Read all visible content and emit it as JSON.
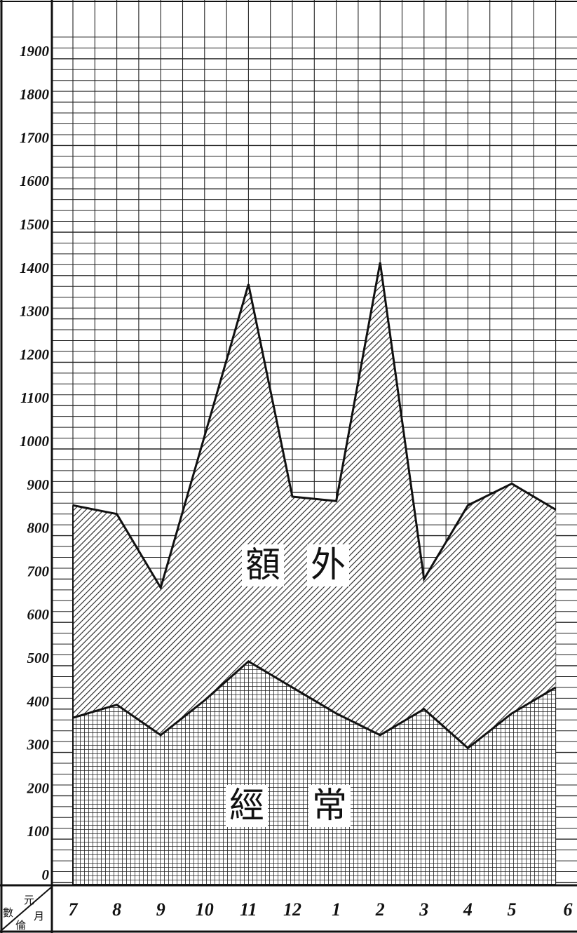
{
  "chart_data": {
    "type": "area",
    "stacked": true,
    "categories": [
      "7",
      "8",
      "9",
      "10",
      "11",
      "12",
      "1",
      "2",
      "3",
      "4",
      "5",
      "6"
    ],
    "series": [
      {
        "name": "經常",
        "values": [
          380,
          410,
          340,
          420,
          510,
          450,
          390,
          340,
          400,
          310,
          390,
          450
        ],
        "fill": "crosshatch"
      },
      {
        "name": "額外",
        "values": [
          490,
          440,
          340,
          610,
          870,
          440,
          490,
          1090,
          300,
          560,
          530,
          410
        ],
        "fill": "diagonal-hatch"
      }
    ],
    "totals": [
      870,
      850,
      680,
      1030,
      1380,
      890,
      880,
      1430,
      700,
      870,
      920,
      860
    ],
    "y_ticks": [
      "0",
      "100",
      "200",
      "300",
      "400",
      "500",
      "600",
      "700",
      "800",
      "900",
      "1000",
      "1100",
      "1200",
      "1300",
      "1400",
      "1500",
      "1600",
      "1700",
      "1800",
      "1900"
    ],
    "ylim": [
      0,
      1950
    ],
    "grid": true,
    "corner_label": {
      "top": "元",
      "right": "月",
      "left": "數",
      "bottom": "倫"
    }
  }
}
